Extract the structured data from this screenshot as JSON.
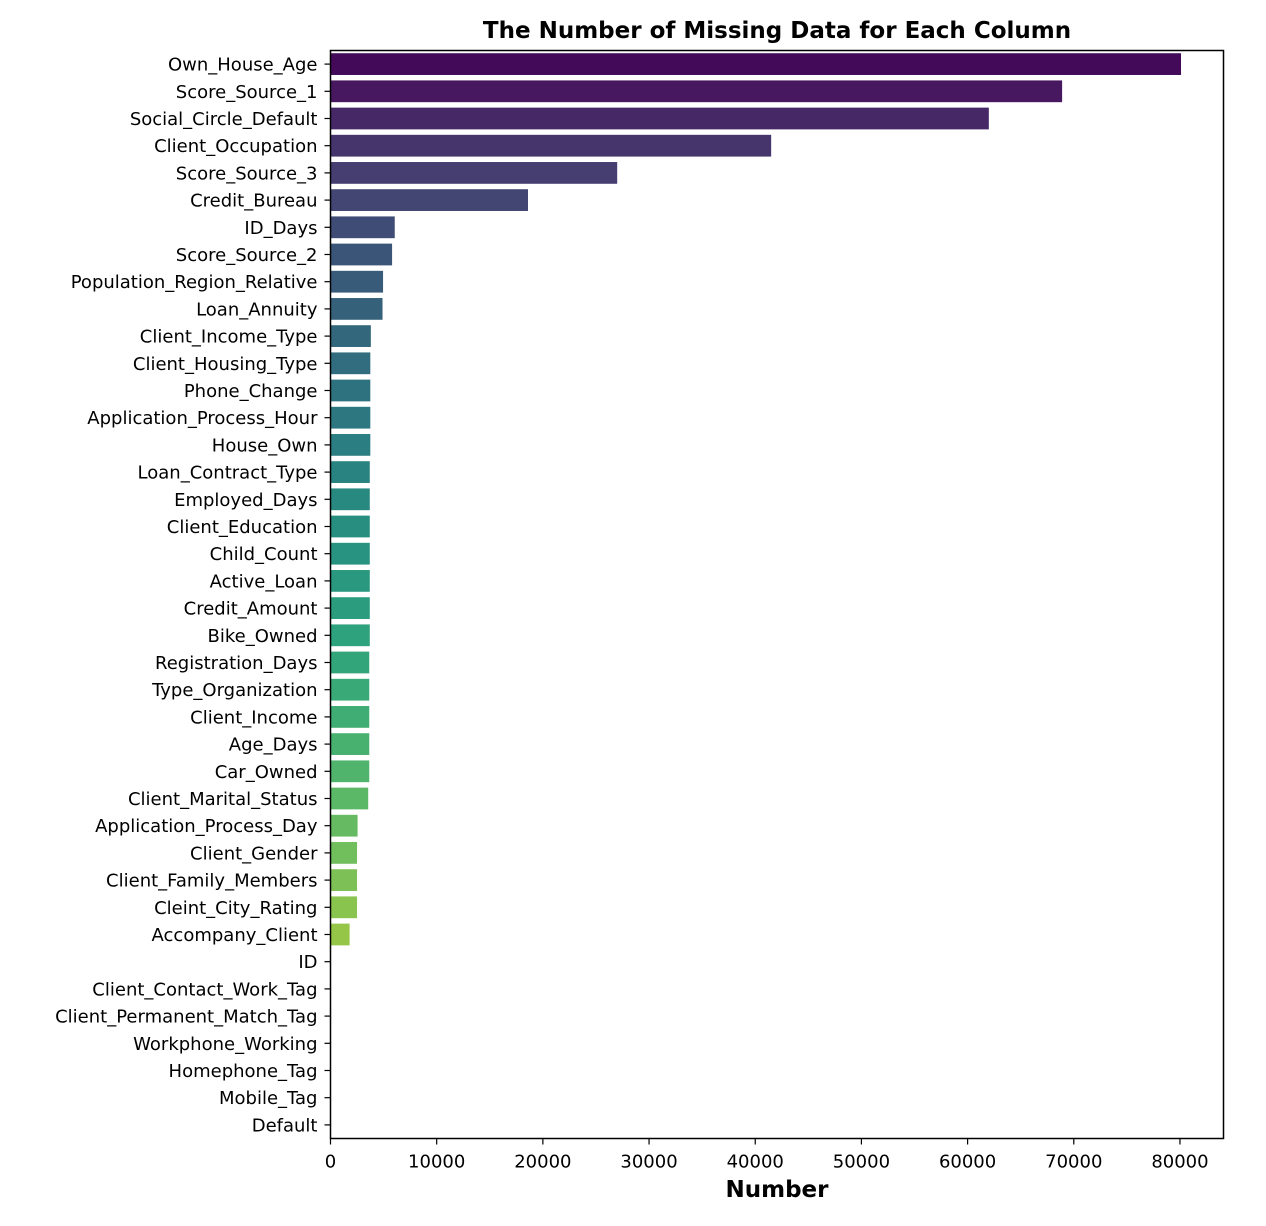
{
  "chart_data": {
    "type": "bar",
    "orientation": "horizontal",
    "title": "The Number of Missing Data for Each Column",
    "xlabel": "Number",
    "ylabel": "",
    "xlim": [
      0,
      84100
    ],
    "xticks": [
      0,
      10000,
      20000,
      30000,
      40000,
      50000,
      60000,
      70000,
      80000
    ],
    "grid": false,
    "palette": "viridis",
    "categories": [
      "Own_House_Age",
      "Score_Source_1",
      "Social_Circle_Default",
      "Client_Occupation",
      "Score_Source_3",
      "Credit_Bureau",
      "ID_Days",
      "Score_Source_2",
      "Population_Region_Relative",
      "Loan_Annuity",
      "Client_Income_Type",
      "Client_Housing_Type",
      "Phone_Change",
      "Application_Process_Hour",
      "House_Own",
      "Loan_Contract_Type",
      "Employed_Days",
      "Client_Education",
      "Child_Count",
      "Active_Loan",
      "Credit_Amount",
      "Bike_Owned",
      "Registration_Days",
      "Type_Organization",
      "Client_Income",
      "Age_Days",
      "Car_Owned",
      "Client_Marital_Status",
      "Application_Process_Day",
      "Client_Gender",
      "Client_Family_Members",
      "Cleint_City_Rating",
      "Accompany_Client",
      "ID",
      "Client_Contact_Work_Tag",
      "Client_Permanent_Match_Tag",
      "Workphone_Working",
      "Homephone_Tag",
      "Mobile_Tag",
      "Default"
    ],
    "values": [
      80100,
      68900,
      62000,
      41500,
      27000,
      18600,
      6050,
      5800,
      4950,
      4900,
      3800,
      3750,
      3750,
      3750,
      3750,
      3700,
      3700,
      3700,
      3700,
      3700,
      3700,
      3700,
      3650,
      3650,
      3650,
      3650,
      3650,
      3550,
      2550,
      2500,
      2500,
      2500,
      1800,
      0,
      0,
      0,
      0,
      0,
      0,
      0
    ],
    "colors": [
      "#440a5a",
      "#47185f",
      "#472867",
      "#46346c",
      "#463e71",
      "#434672",
      "#3f4d76",
      "#3b5578",
      "#385b7a",
      "#36617b",
      "#33677c",
      "#316d7e",
      "#2f727f",
      "#2d7880",
      "#2b7e81",
      "#298380",
      "#288980",
      "#288e80",
      "#289380",
      "#29987f",
      "#2b9d7e",
      "#2ea17d",
      "#33a57a",
      "#39a977",
      "#40ad74",
      "#48b170",
      "#51b46c",
      "#5bb867",
      "#66bb62",
      "#71be5c",
      "#7dc156",
      "#89c44f",
      "#96c647",
      "#a3c83f",
      "#b0ca37",
      "#bdcd2f",
      "#cad027",
      "#d7d222",
      "#e4d41e",
      "#f0d61c"
    ]
  }
}
